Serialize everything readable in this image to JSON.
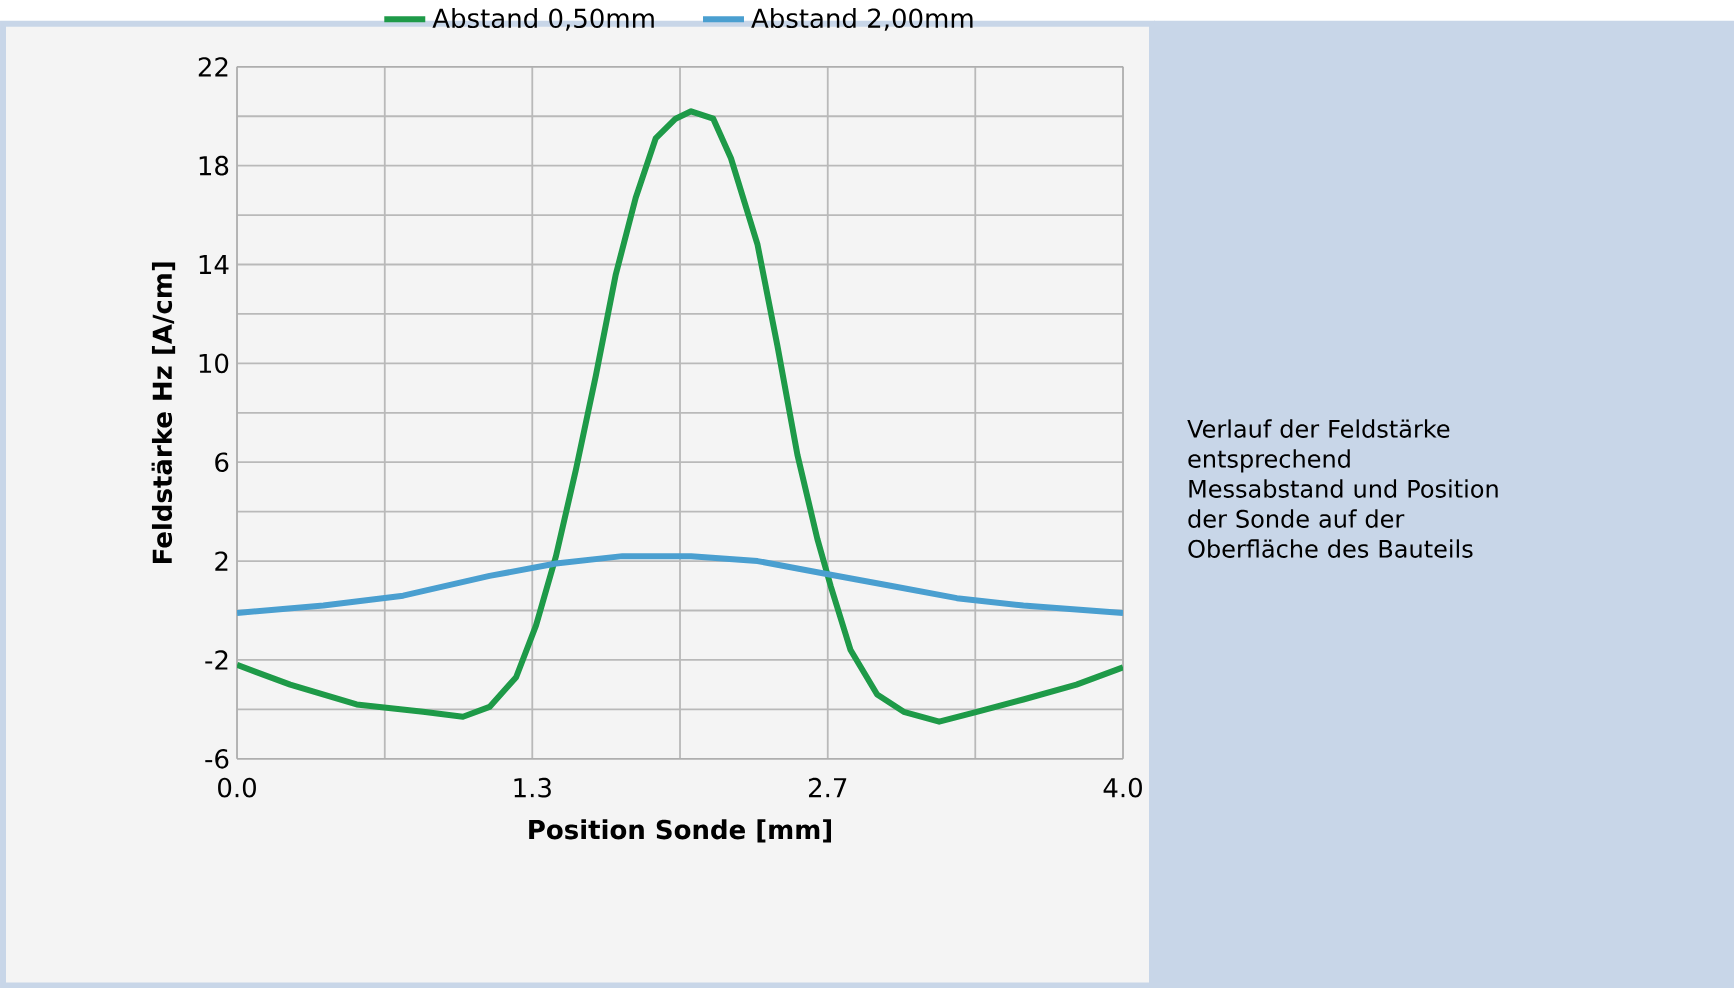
{
  "chart_data": {
    "type": "line",
    "xlabel": "Position Sonde [mm]",
    "ylabel": "Feldstärke Hz [A/cm]",
    "annotations": [
      "Verlauf der Feldstärke entsprechend Messabstand und Position der Sonde auf der Oberfläche des Bauteils"
    ],
    "xlim": [
      0,
      4
    ],
    "ylim": [
      -6,
      22
    ],
    "xticks": [
      {
        "value": 0,
        "label": "0.0"
      },
      {
        "value": 0.667,
        "label": null
      },
      {
        "value": 1.333,
        "label": "1.3"
      },
      {
        "value": 2,
        "label": null
      },
      {
        "value": 2.667,
        "label": "2.7"
      },
      {
        "value": 3.333,
        "label": null
      },
      {
        "value": 4,
        "label": "4.0"
      }
    ],
    "yticks": [
      -6,
      {
        "value": -4,
        "label": null
      },
      -2,
      {
        "value": 0,
        "label": null
      },
      2,
      {
        "value": 4,
        "label": null
      },
      6,
      {
        "value": 8,
        "label": null
      },
      10,
      {
        "value": 12,
        "label": null
      },
      14,
      {
        "value": 16,
        "label": null
      },
      18,
      {
        "value": 20,
        "label": null
      },
      22
    ],
    "grid": true,
    "legend": "top",
    "marker": "none",
    "line_style": "solid",
    "series": [
      {
        "name": "Abstand 0,50mm",
        "color": "#1e9a48",
        "x": [
          0,
          0.24,
          0.54,
          0.84,
          1.02,
          1.14,
          1.26,
          1.35,
          1.44,
          1.53,
          1.62,
          1.71,
          1.8,
          1.89,
          1.98,
          2.05,
          2.15,
          2.23,
          2.35,
          2.44,
          2.53,
          2.62,
          2.68,
          2.77,
          2.89,
          3.01,
          3.17,
          3.34,
          3.55,
          3.79,
          4.0
        ],
        "values": [
          -2.2,
          -3.0,
          -3.8,
          -4.1,
          -4.3,
          -3.9,
          -2.7,
          -0.6,
          2.2,
          5.7,
          9.5,
          13.6,
          16.7,
          19.1,
          19.9,
          20.2,
          19.9,
          18.3,
          14.8,
          10.7,
          6.3,
          2.9,
          1.0,
          -1.6,
          -3.4,
          -4.1,
          -4.5,
          -4.1,
          -3.6,
          -3.0,
          -2.3
        ]
      },
      {
        "name": "Abstand 2,00mm",
        "color": "#4a9fd0",
        "x": [
          0,
          0.39,
          0.75,
          1.14,
          1.44,
          1.74,
          2.05,
          2.35,
          2.65,
          2.95,
          3.25,
          3.55,
          4.0
        ],
        "values": [
          -0.1,
          0.2,
          0.6,
          1.4,
          1.9,
          2.2,
          2.2,
          2.0,
          1.5,
          1.0,
          0.5,
          0.2,
          -0.1
        ]
      }
    ]
  }
}
